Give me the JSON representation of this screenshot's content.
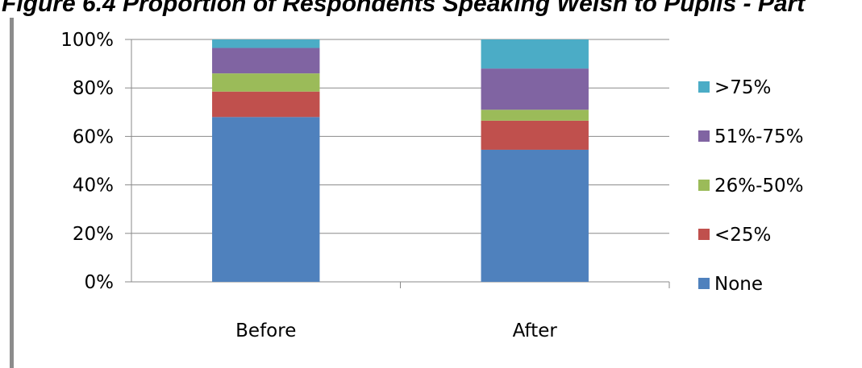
{
  "title": "Figure 6.4 Proportion of Respondents Speaking Welsh to Pupils - Part",
  "chart_data": {
    "type": "bar",
    "stacked": true,
    "categories": [
      "Before",
      "After"
    ],
    "ylim": [
      0,
      100
    ],
    "yticks": [
      "0%",
      "20%",
      "40%",
      "60%",
      "80%",
      "100%"
    ],
    "grid": true,
    "legend_position": "right",
    "series": [
      {
        "name": "None",
        "color": "#4F81BD",
        "values": [
          68,
          54.5
        ]
      },
      {
        "name": "<25%",
        "color": "#C0504D",
        "values": [
          10.5,
          12
        ]
      },
      {
        "name": "26%-50%",
        "color": "#9BBB59",
        "values": [
          7.5,
          4.5
        ]
      },
      {
        "name": "51%-75%",
        "color": "#8064A2",
        "values": [
          10.5,
          17
        ]
      },
      {
        "name": ">75%",
        "color": "#4BACC6",
        "values": [
          3.5,
          12
        ]
      }
    ]
  }
}
